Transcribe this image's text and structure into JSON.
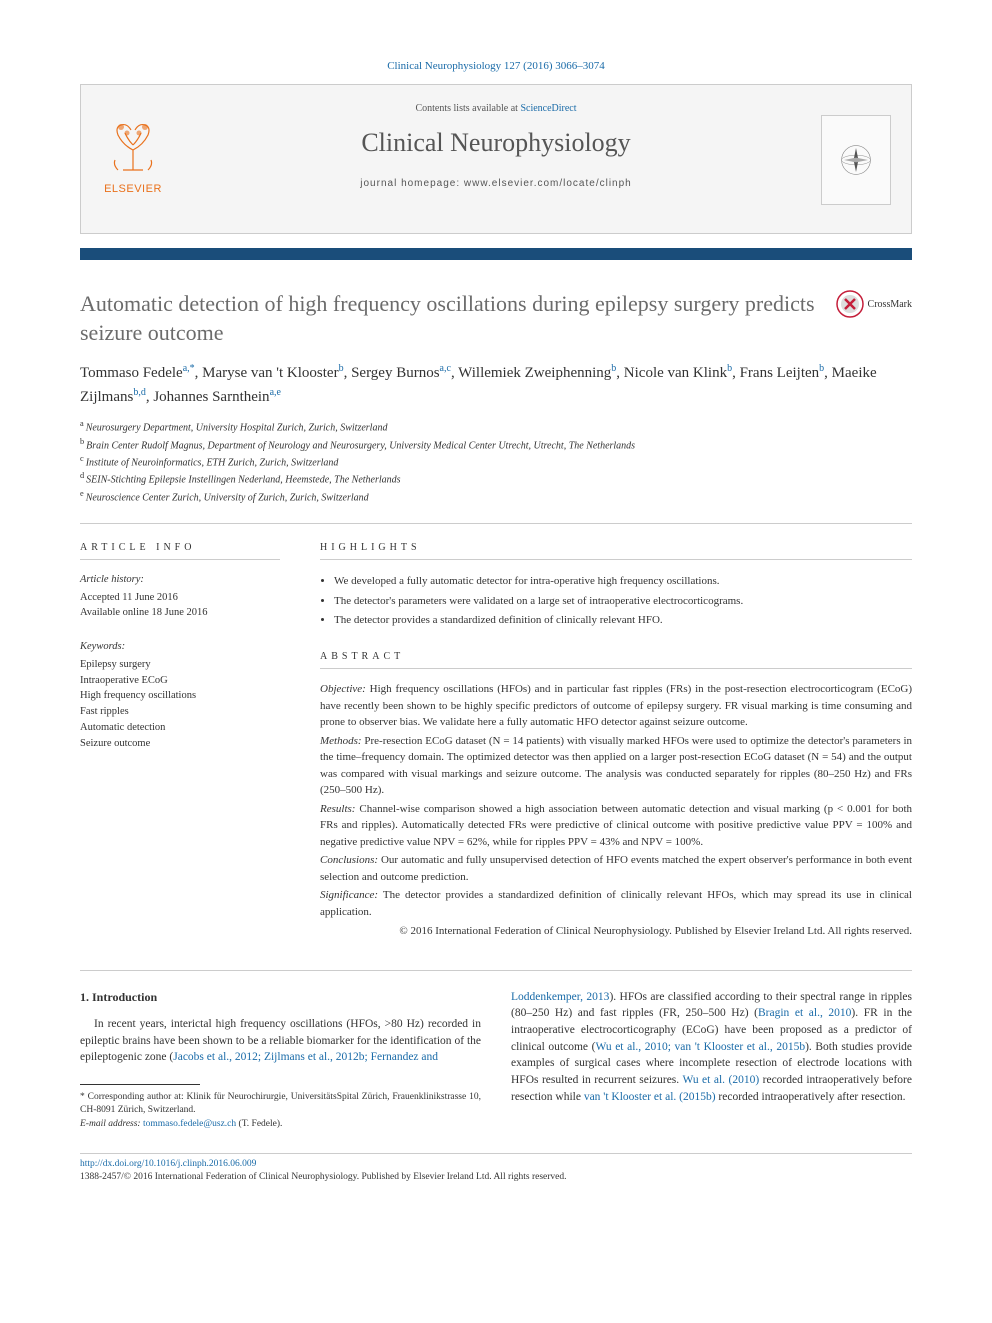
{
  "top_citation": "Clinical Neurophysiology 127 (2016) 3066–3074",
  "header": {
    "contents_prefix": "Contents lists available at ",
    "contents_link": "ScienceDirect",
    "journal_name": "Clinical Neurophysiology",
    "homepage_prefix": "journal homepage: ",
    "homepage_url": "www.elsevier.com/locate/clinph",
    "elsevier_label": "ELSEVIER"
  },
  "color_bar": "#1a4d7a",
  "title": "Automatic detection of high frequency oscillations during epilepsy surgery predicts seizure outcome",
  "crossmark_label": "CrossMark",
  "authors_html": [
    {
      "name": "Tommaso Fedele",
      "sup": "a,*"
    },
    {
      "name": "Maryse van 't Klooster",
      "sup": "b"
    },
    {
      "name": "Sergey Burnos",
      "sup": "a,c"
    },
    {
      "name": "Willemiek Zweiphenning",
      "sup": "b"
    },
    {
      "name": "Nicole van Klink",
      "sup": "b"
    },
    {
      "name": "Frans Leijten",
      "sup": "b"
    },
    {
      "name": "Maeike Zijlmans",
      "sup": "b,d"
    },
    {
      "name": "Johannes Sarnthein",
      "sup": "a,e"
    }
  ],
  "affiliations": [
    {
      "sup": "a",
      "text": "Neurosurgery Department, University Hospital Zurich, Zurich, Switzerland"
    },
    {
      "sup": "b",
      "text": "Brain Center Rudolf Magnus, Department of Neurology and Neurosurgery, University Medical Center Utrecht, Utrecht, The Netherlands"
    },
    {
      "sup": "c",
      "text": "Institute of Neuroinformatics, ETH Zurich, Zurich, Switzerland"
    },
    {
      "sup": "d",
      "text": "SEIN-Stichting Epilepsie Instellingen Nederland, Heemstede, The Netherlands"
    },
    {
      "sup": "e",
      "text": "Neuroscience Center Zurich, University of Zurich, Zurich, Switzerland"
    }
  ],
  "article_info": {
    "label": "ARTICLE INFO",
    "history_heading": "Article history:",
    "accepted": "Accepted 11 June 2016",
    "online": "Available online 18 June 2016",
    "keywords_heading": "Keywords:",
    "keywords": [
      "Epilepsy surgery",
      "Intraoperative ECoG",
      "High frequency oscillations",
      "Fast ripples",
      "Automatic detection",
      "Seizure outcome"
    ]
  },
  "highlights": {
    "label": "HIGHLIGHTS",
    "items": [
      "We developed a fully automatic detector for intra-operative high frequency oscillations.",
      "The detector's parameters were validated on a large set of intraoperative electrocorticograms.",
      "The detector provides a standardized definition of clinically relevant HFO."
    ]
  },
  "abstract": {
    "label": "ABSTRACT",
    "objective_label": "Objective:",
    "objective": "High frequency oscillations (HFOs) and in particular fast ripples (FRs) in the post-resection electrocorticogram (ECoG) have recently been shown to be highly specific predictors of outcome of epilepsy surgery. FR visual marking is time consuming and prone to observer bias. We validate here a fully automatic HFO detector against seizure outcome.",
    "methods_label": "Methods:",
    "methods": "Pre-resection ECoG dataset (N = 14 patients) with visually marked HFOs were used to optimize the detector's parameters in the time–frequency domain. The optimized detector was then applied on a larger post-resection ECoG dataset (N = 54) and the output was compared with visual markings and seizure outcome. The analysis was conducted separately for ripples (80–250 Hz) and FRs (250–500 Hz).",
    "results_label": "Results:",
    "results": "Channel-wise comparison showed a high association between automatic detection and visual marking (p < 0.001 for both FRs and ripples). Automatically detected FRs were predictive of clinical outcome with positive predictive value PPV = 100% and negative predictive value NPV = 62%, while for ripples PPV = 43% and NPV = 100%.",
    "conclusions_label": "Conclusions:",
    "conclusions": "Our automatic and fully unsupervised detection of HFO events matched the expert observer's performance in both event selection and outcome prediction.",
    "significance_label": "Significance:",
    "significance": "The detector provides a standardized definition of clinically relevant HFOs, which may spread its use in clinical application.",
    "copyright": "© 2016 International Federation of Clinical Neurophysiology. Published by Elsevier Ireland Ltd. All rights reserved."
  },
  "body": {
    "intro_heading": "1. Introduction",
    "para1_pre": "In recent years, interictal high frequency oscillations (HFOs, >80 Hz) recorded in epileptic brains have been shown to be a reliable biomarker for the identification of the epileptogenic zone (",
    "para1_ref1": "Jacobs et al., 2012; Zijlmans et al., 2012b; Fernandez and",
    "para2_ref_cont": "Loddenkemper, 2013",
    "para2_a": "). HFOs are classified according to their spectral range in ripples (80–250 Hz) and fast ripples (FR, 250–500 Hz) (",
    "para2_ref2": "Bragin et al., 2010",
    "para2_b": "). FR in the intraoperative electrocorticography (ECoG) have been proposed as a predictor of clinical outcome (",
    "para2_ref3": "Wu et al., 2010; van 't Klooster et al., 2015b",
    "para2_c": "). Both studies provide examples of surgical cases where incomplete resection of electrode locations with HFOs resulted in recurrent seizures. ",
    "para2_ref4": "Wu et al. (2010)",
    "para2_d": " recorded intraoperatively before resection while ",
    "para2_ref5": "van 't Klooster et al. (2015b)",
    "para2_e": " recorded intraoperatively after resection."
  },
  "footnote": {
    "corresponding": "* Corresponding author at: Klinik für Neurochirurgie, UniversitätsSpital Zürich, Frauenklinikstrasse 10, CH-8091 Zürich, Switzerland.",
    "email_label": "E-mail address:",
    "email": "tommaso.fedele@usz.ch",
    "email_who": " (T. Fedele)."
  },
  "footer": {
    "doi": "http://dx.doi.org/10.1016/j.clinph.2016.06.009",
    "issn_line": "1388-2457/© 2016 International Federation of Clinical Neurophysiology. Published by Elsevier Ireland Ltd. All rights reserved."
  },
  "colors": {
    "link": "#1a6ba8",
    "elsevier_orange": "#e9711c",
    "title_grey": "#6b6b6b",
    "bar": "#1a4d7a"
  }
}
